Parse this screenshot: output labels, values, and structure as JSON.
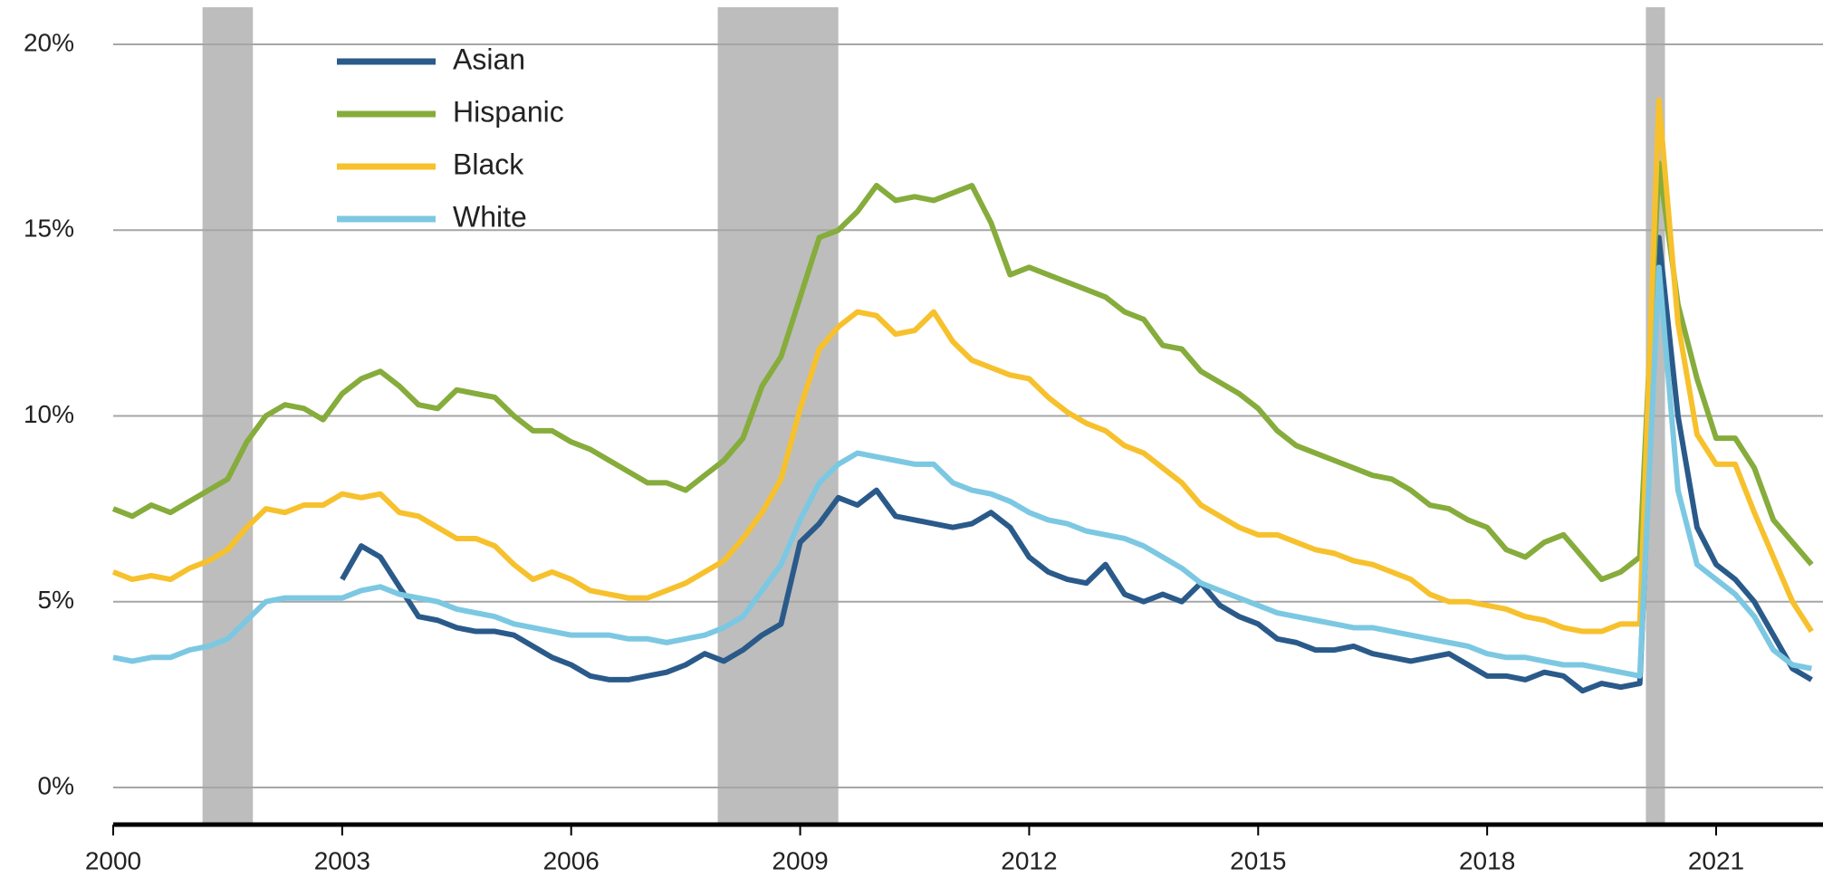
{
  "chart_data": {
    "type": "line",
    "xlim": [
      2000,
      2022.4
    ],
    "ylim": [
      -1,
      21
    ],
    "xticks": [
      2000,
      2003,
      2006,
      2009,
      2012,
      2015,
      2018,
      2021
    ],
    "yticks": [
      {
        "value": 0,
        "label": "0%"
      },
      {
        "value": 5,
        "label": "5%"
      },
      {
        "value": 10,
        "label": "10%"
      },
      {
        "value": 15,
        "label": "15%"
      },
      {
        "value": 20,
        "label": "20%"
      }
    ],
    "grid": true,
    "legend": "upper-left",
    "recessions": [
      [
        2001.17,
        2001.83
      ],
      [
        2007.92,
        2009.5
      ],
      [
        2020.08,
        2020.33
      ]
    ],
    "recession_color": "#bdbdbd",
    "x": [
      2000,
      2000.25,
      2000.5,
      2000.75,
      2001,
      2001.25,
      2001.5,
      2001.75,
      2002,
      2002.25,
      2002.5,
      2002.75,
      2003,
      2003.25,
      2003.5,
      2003.75,
      2004,
      2004.25,
      2004.5,
      2004.75,
      2005,
      2005.25,
      2005.5,
      2005.75,
      2006,
      2006.25,
      2006.5,
      2006.75,
      2007,
      2007.25,
      2007.5,
      2007.75,
      2008,
      2008.25,
      2008.5,
      2008.75,
      2009,
      2009.25,
      2009.5,
      2009.75,
      2010,
      2010.25,
      2010.5,
      2010.75,
      2011,
      2011.25,
      2011.5,
      2011.75,
      2012,
      2012.25,
      2012.5,
      2012.75,
      2013,
      2013.25,
      2013.5,
      2013.75,
      2014,
      2014.25,
      2014.5,
      2014.75,
      2015,
      2015.25,
      2015.5,
      2015.75,
      2016,
      2016.25,
      2016.5,
      2016.75,
      2017,
      2017.25,
      2017.5,
      2017.75,
      2018,
      2018.25,
      2018.5,
      2018.75,
      2019,
      2019.25,
      2019.5,
      2019.75,
      2020,
      2020.25,
      2020.5,
      2020.75,
      2021,
      2021.25,
      2021.5,
      2021.75,
      2022,
      2022.25
    ],
    "series": [
      {
        "name": "Asian",
        "color": "#2a5a8a",
        "values": [
          null,
          null,
          null,
          null,
          null,
          null,
          null,
          null,
          null,
          null,
          null,
          null,
          5.6,
          6.5,
          6.2,
          5.4,
          4.6,
          4.5,
          4.3,
          4.2,
          4.2,
          4.1,
          3.8,
          3.5,
          3.3,
          3.0,
          2.9,
          2.9,
          3.0,
          3.1,
          3.3,
          3.6,
          3.4,
          3.7,
          4.1,
          4.4,
          6.6,
          7.1,
          7.8,
          7.6,
          8.0,
          7.3,
          7.2,
          7.1,
          7.0,
          7.1,
          7.4,
          7.0,
          6.2,
          5.8,
          5.6,
          5.5,
          6.0,
          5.2,
          5.0,
          5.2,
          5.0,
          5.5,
          4.9,
          4.6,
          4.4,
          4.0,
          3.9,
          3.7,
          3.7,
          3.8,
          3.6,
          3.5,
          3.4,
          3.5,
          3.6,
          3.3,
          3.0,
          3.0,
          2.9,
          3.1,
          3.0,
          2.6,
          2.8,
          2.7,
          2.8,
          14.8,
          10.0,
          7.0,
          6.0,
          5.6,
          5.0,
          4.1,
          3.2,
          2.9
        ]
      },
      {
        "name": "Hispanic",
        "color": "#86ac3c",
        "values": [
          7.5,
          7.3,
          7.6,
          7.4,
          7.7,
          8.0,
          8.3,
          9.3,
          10.0,
          10.3,
          10.2,
          9.9,
          10.6,
          11.0,
          11.2,
          10.8,
          10.3,
          10.2,
          10.7,
          10.6,
          10.5,
          10.0,
          9.6,
          9.6,
          9.3,
          9.1,
          8.8,
          8.5,
          8.2,
          8.2,
          8.0,
          8.4,
          8.8,
          9.4,
          10.8,
          11.6,
          13.2,
          14.8,
          15.0,
          15.5,
          16.2,
          15.8,
          15.9,
          15.8,
          16.0,
          16.2,
          15.2,
          13.8,
          14.0,
          13.8,
          13.6,
          13.4,
          13.2,
          12.8,
          12.6,
          11.9,
          11.8,
          11.2,
          10.9,
          10.6,
          10.2,
          9.6,
          9.2,
          9.0,
          8.8,
          8.6,
          8.4,
          8.3,
          8.0,
          7.6,
          7.5,
          7.2,
          7.0,
          6.4,
          6.2,
          6.6,
          6.8,
          6.2,
          5.6,
          5.8,
          6.2,
          16.8,
          13.0,
          11.0,
          9.4,
          9.4,
          8.6,
          7.2,
          6.6,
          6.0
        ]
      },
      {
        "name": "Black",
        "color": "#f7c12d",
        "values": [
          5.8,
          5.6,
          5.7,
          5.6,
          5.9,
          6.1,
          6.4,
          7.0,
          7.5,
          7.4,
          7.6,
          7.6,
          7.9,
          7.8,
          7.9,
          7.4,
          7.3,
          7.0,
          6.7,
          6.7,
          6.5,
          6.0,
          5.6,
          5.8,
          5.6,
          5.3,
          5.2,
          5.1,
          5.1,
          5.3,
          5.5,
          5.8,
          6.1,
          6.7,
          7.4,
          8.3,
          10.2,
          11.8,
          12.4,
          12.8,
          12.7,
          12.2,
          12.3,
          12.8,
          12.0,
          11.5,
          11.3,
          11.1,
          11.0,
          10.5,
          10.1,
          9.8,
          9.6,
          9.2,
          9.0,
          8.6,
          8.2,
          7.6,
          7.3,
          7.0,
          6.8,
          6.8,
          6.6,
          6.4,
          6.3,
          6.1,
          6.0,
          5.8,
          5.6,
          5.2,
          5.0,
          5.0,
          4.9,
          4.8,
          4.6,
          4.5,
          4.3,
          4.2,
          4.2,
          4.4,
          4.4,
          18.5,
          12.5,
          9.5,
          8.7,
          8.7,
          7.4,
          6.2,
          5.0,
          4.2
        ]
      },
      {
        "name": "White",
        "color": "#7cc8e2",
        "values": [
          3.5,
          3.4,
          3.5,
          3.5,
          3.7,
          3.8,
          4.0,
          4.5,
          5.0,
          5.1,
          5.1,
          5.1,
          5.1,
          5.3,
          5.4,
          5.2,
          5.1,
          5.0,
          4.8,
          4.7,
          4.6,
          4.4,
          4.3,
          4.2,
          4.1,
          4.1,
          4.1,
          4.0,
          4.0,
          3.9,
          4.0,
          4.1,
          4.3,
          4.6,
          5.3,
          6.0,
          7.2,
          8.2,
          8.7,
          9.0,
          8.9,
          8.8,
          8.7,
          8.7,
          8.2,
          8.0,
          7.9,
          7.7,
          7.4,
          7.2,
          7.1,
          6.9,
          6.8,
          6.7,
          6.5,
          6.2,
          5.9,
          5.5,
          5.3,
          5.1,
          4.9,
          4.7,
          4.6,
          4.5,
          4.4,
          4.3,
          4.3,
          4.2,
          4.1,
          4.0,
          3.9,
          3.8,
          3.6,
          3.5,
          3.5,
          3.4,
          3.3,
          3.3,
          3.2,
          3.1,
          3.0,
          14.0,
          8.0,
          6.0,
          5.6,
          5.2,
          4.6,
          3.7,
          3.3,
          3.2
        ]
      }
    ]
  }
}
